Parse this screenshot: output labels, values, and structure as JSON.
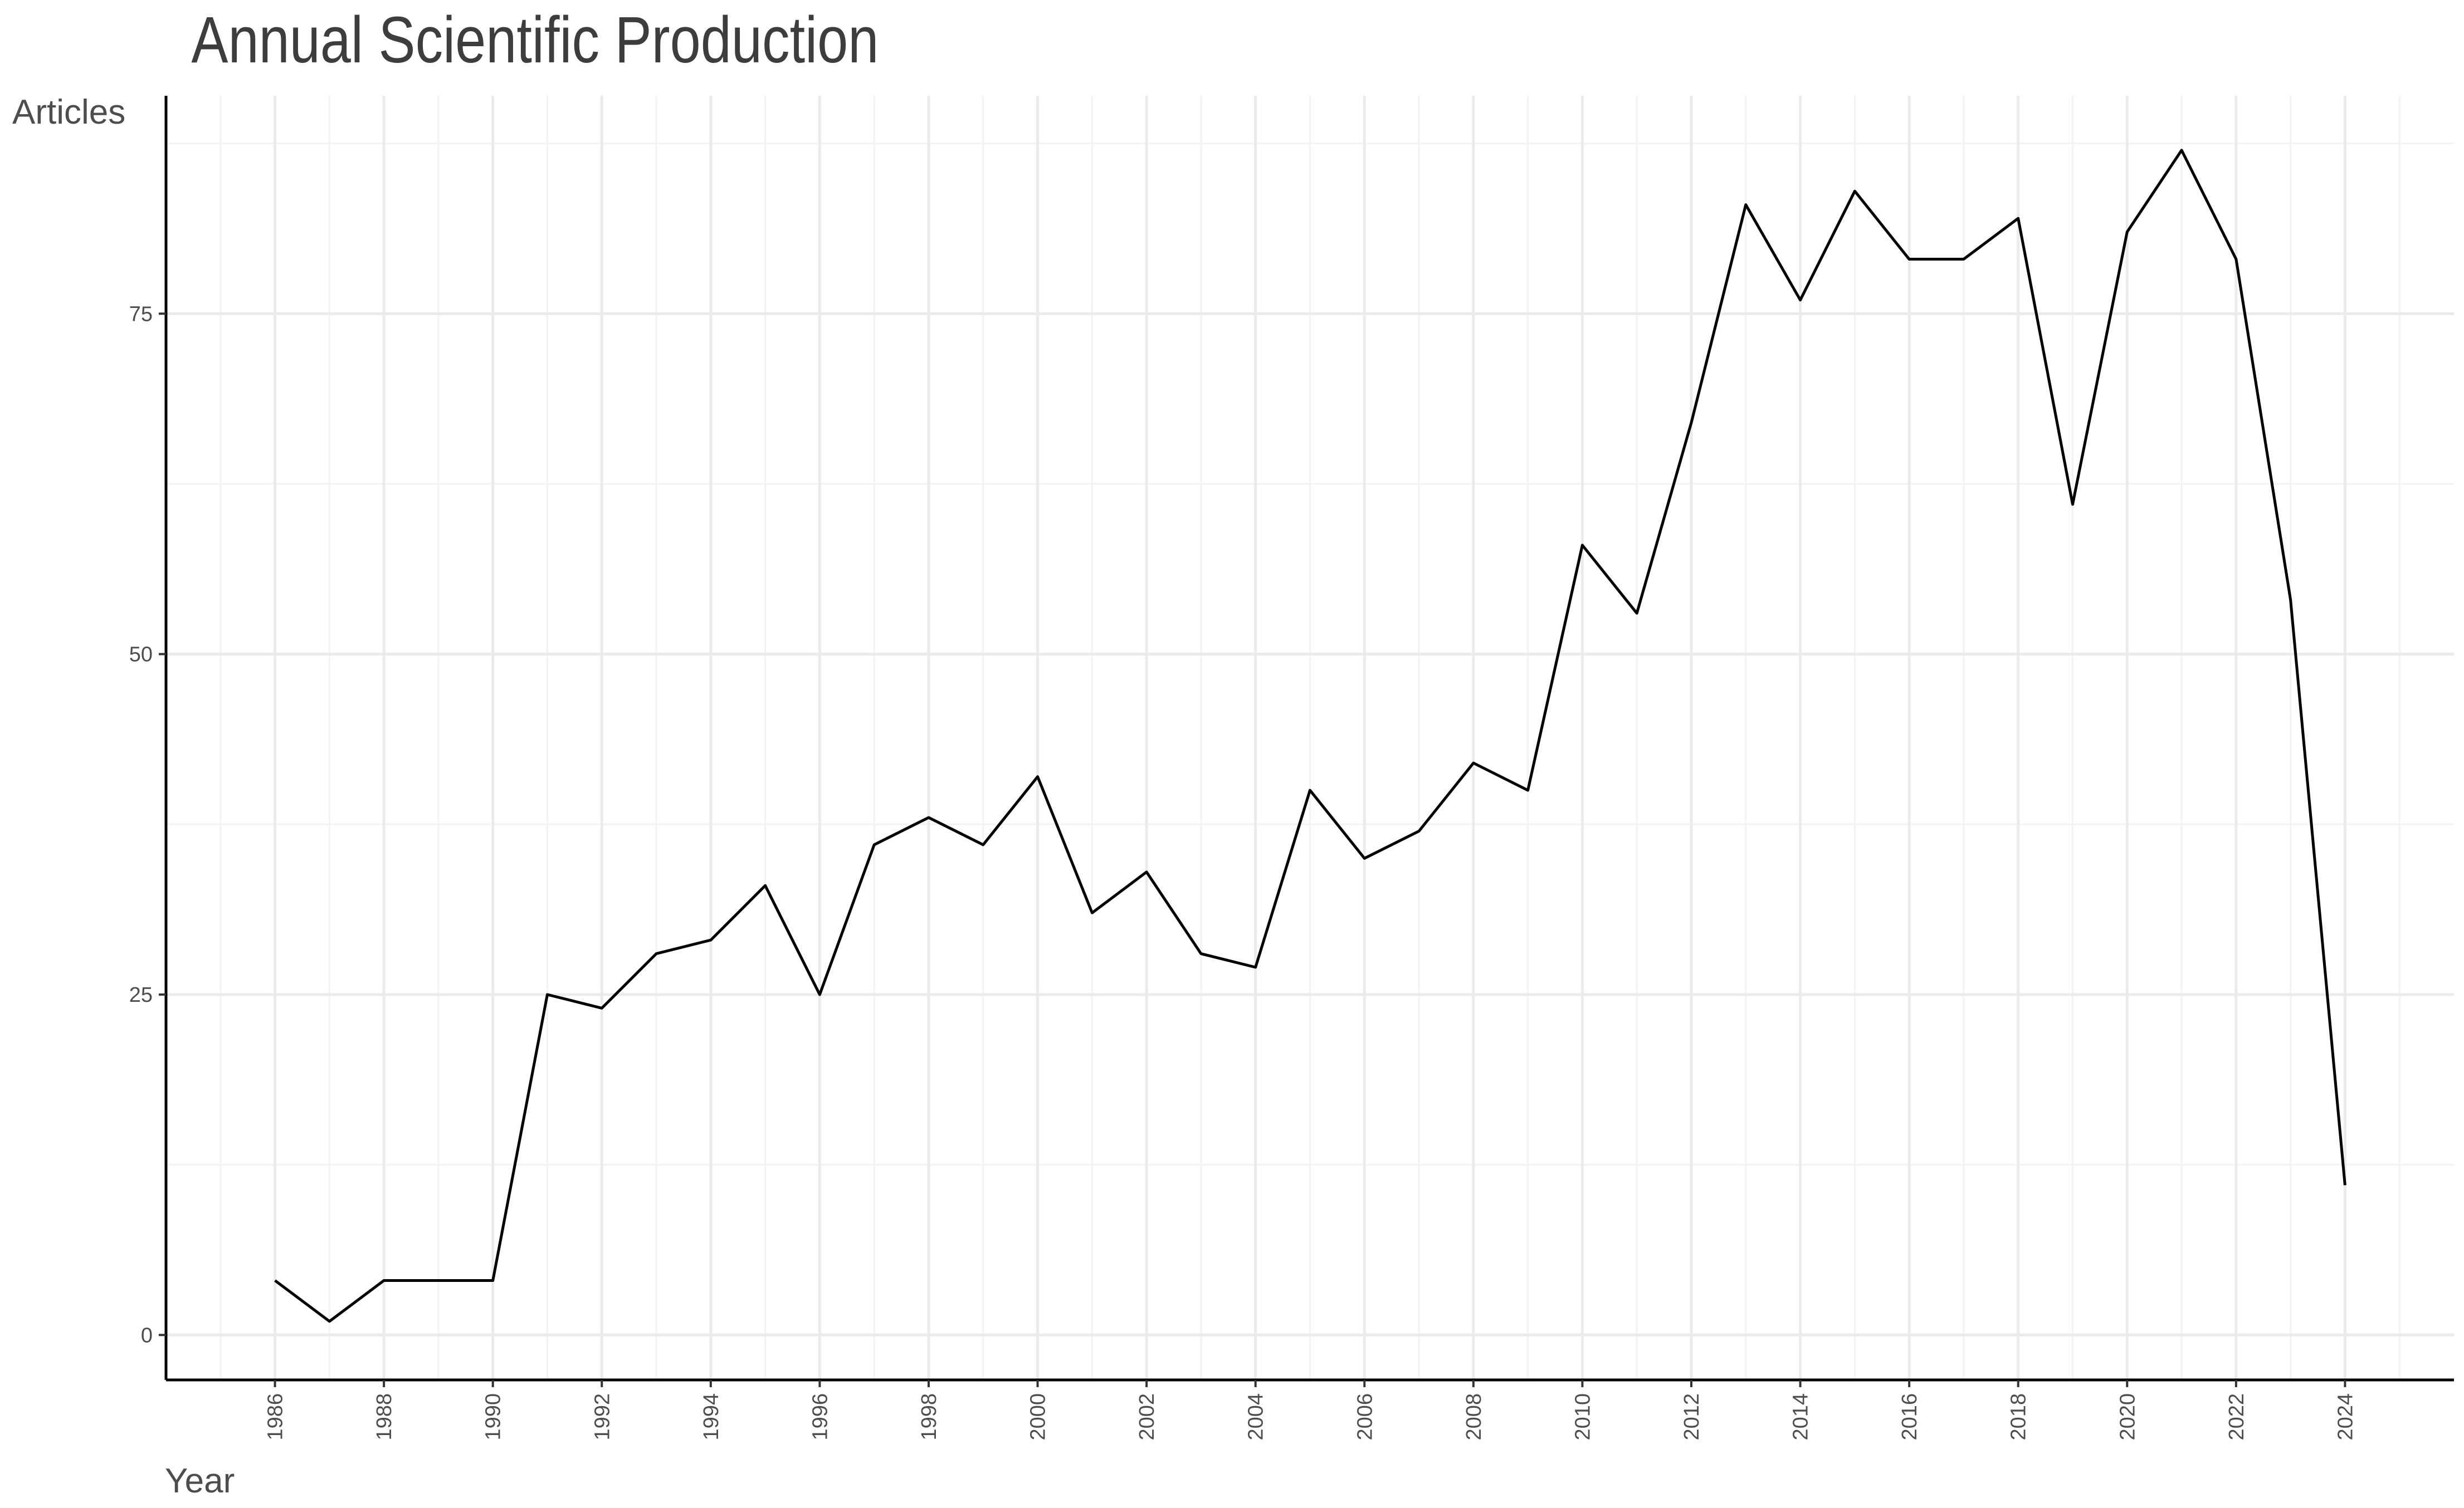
{
  "chart_data": {
    "type": "line",
    "title": "Annual Scientific Production",
    "xlabel": "Year",
    "ylabel": "Articles",
    "xlim": [
      1984,
      2026
    ],
    "ylim": [
      -3.3,
      91
    ],
    "x_ticks": [
      1986,
      1988,
      1990,
      1992,
      1994,
      1996,
      1998,
      2000,
      2002,
      2004,
      2006,
      2008,
      2010,
      2012,
      2014,
      2016,
      2018,
      2020,
      2022,
      2024
    ],
    "y_ticks": [
      0,
      25,
      50,
      75
    ],
    "grid": true,
    "legend": "none",
    "series": [
      {
        "line_color": "#000000",
        "x": [
          1986,
          1987,
          1988,
          1989,
          1990,
          1991,
          1992,
          1993,
          1994,
          1995,
          1996,
          1997,
          1998,
          1999,
          2000,
          2001,
          2002,
          2003,
          2004,
          2005,
          2006,
          2007,
          2008,
          2009,
          2010,
          2011,
          2012,
          2013,
          2014,
          2015,
          2016,
          2017,
          2018,
          2019,
          2020,
          2021,
          2022,
          2023,
          2024
        ],
        "values": [
          4,
          1,
          4,
          4,
          4,
          25,
          24,
          28,
          29,
          33,
          25,
          36,
          38,
          36,
          41,
          31,
          34,
          28,
          27,
          40,
          35,
          37,
          42,
          40,
          58,
          53,
          67,
          83,
          76,
          84,
          79,
          79,
          82,
          61,
          81,
          87,
          79,
          54,
          11
        ]
      }
    ]
  }
}
